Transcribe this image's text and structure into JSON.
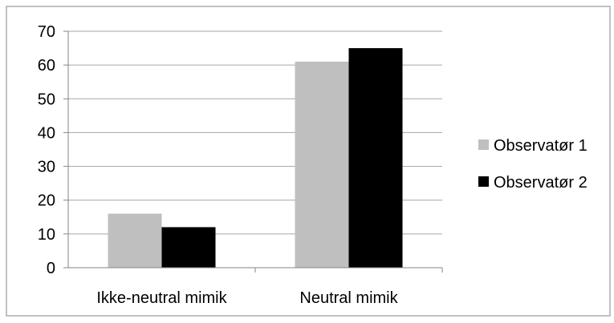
{
  "chart_data": {
    "type": "bar",
    "title": "",
    "xlabel": "",
    "ylabel": "",
    "categories": [
      "Ikke-neutral mimik",
      "Neutral mimik"
    ],
    "series": [
      {
        "name": "Observatør 1",
        "values": [
          16,
          61
        ],
        "color": "#bfbfbf"
      },
      {
        "name": "Observatør 2",
        "values": [
          12,
          65
        ],
        "color": "#000000"
      }
    ],
    "ylim": [
      0,
      70
    ],
    "yticks": [
      "0",
      "10",
      "20",
      "30",
      "40",
      "50",
      "60",
      "70"
    ],
    "grid": true,
    "legend_position": "right",
    "colors": {
      "gridline": "#a6a6a6",
      "axis": "#868686",
      "border": "#868686"
    }
  }
}
